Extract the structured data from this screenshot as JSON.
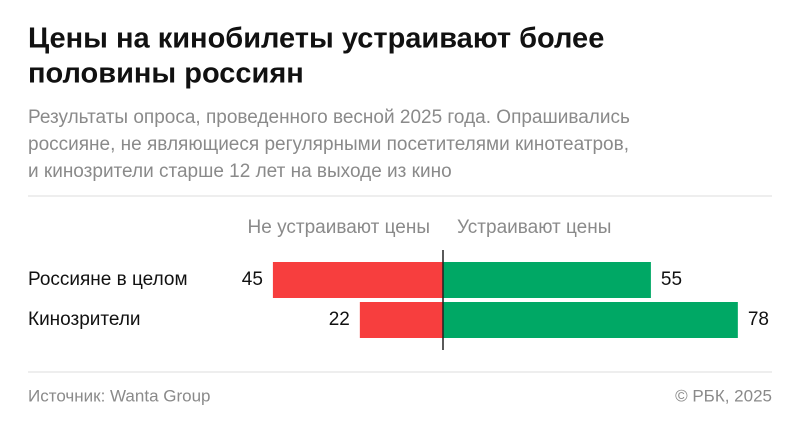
{
  "chart_data": {
    "type": "diverging-bar",
    "title": [
      "Цены на кинобилеты устраивают более",
      "половины россиян"
    ],
    "subtitle": [
      "Результаты опроса, проведенного весной 2025 года. Опрашивались",
      "россияне, не являющиеся регулярными посетителями кинотеатров,",
      "и кинозрители старше 12 лет на выходе из кино"
    ],
    "categories": [
      "Россияне в целом",
      "Кинозрители"
    ],
    "series": [
      {
        "name": "Не устраивают цены",
        "color": "#f73e3e",
        "values": [
          45,
          22
        ]
      },
      {
        "name": "Устраивают цены",
        "color": "#00a865",
        "values": [
          55,
          78
        ]
      }
    ],
    "source": "Источник: Wanta Group",
    "copyright": "© РБК, 2025"
  }
}
